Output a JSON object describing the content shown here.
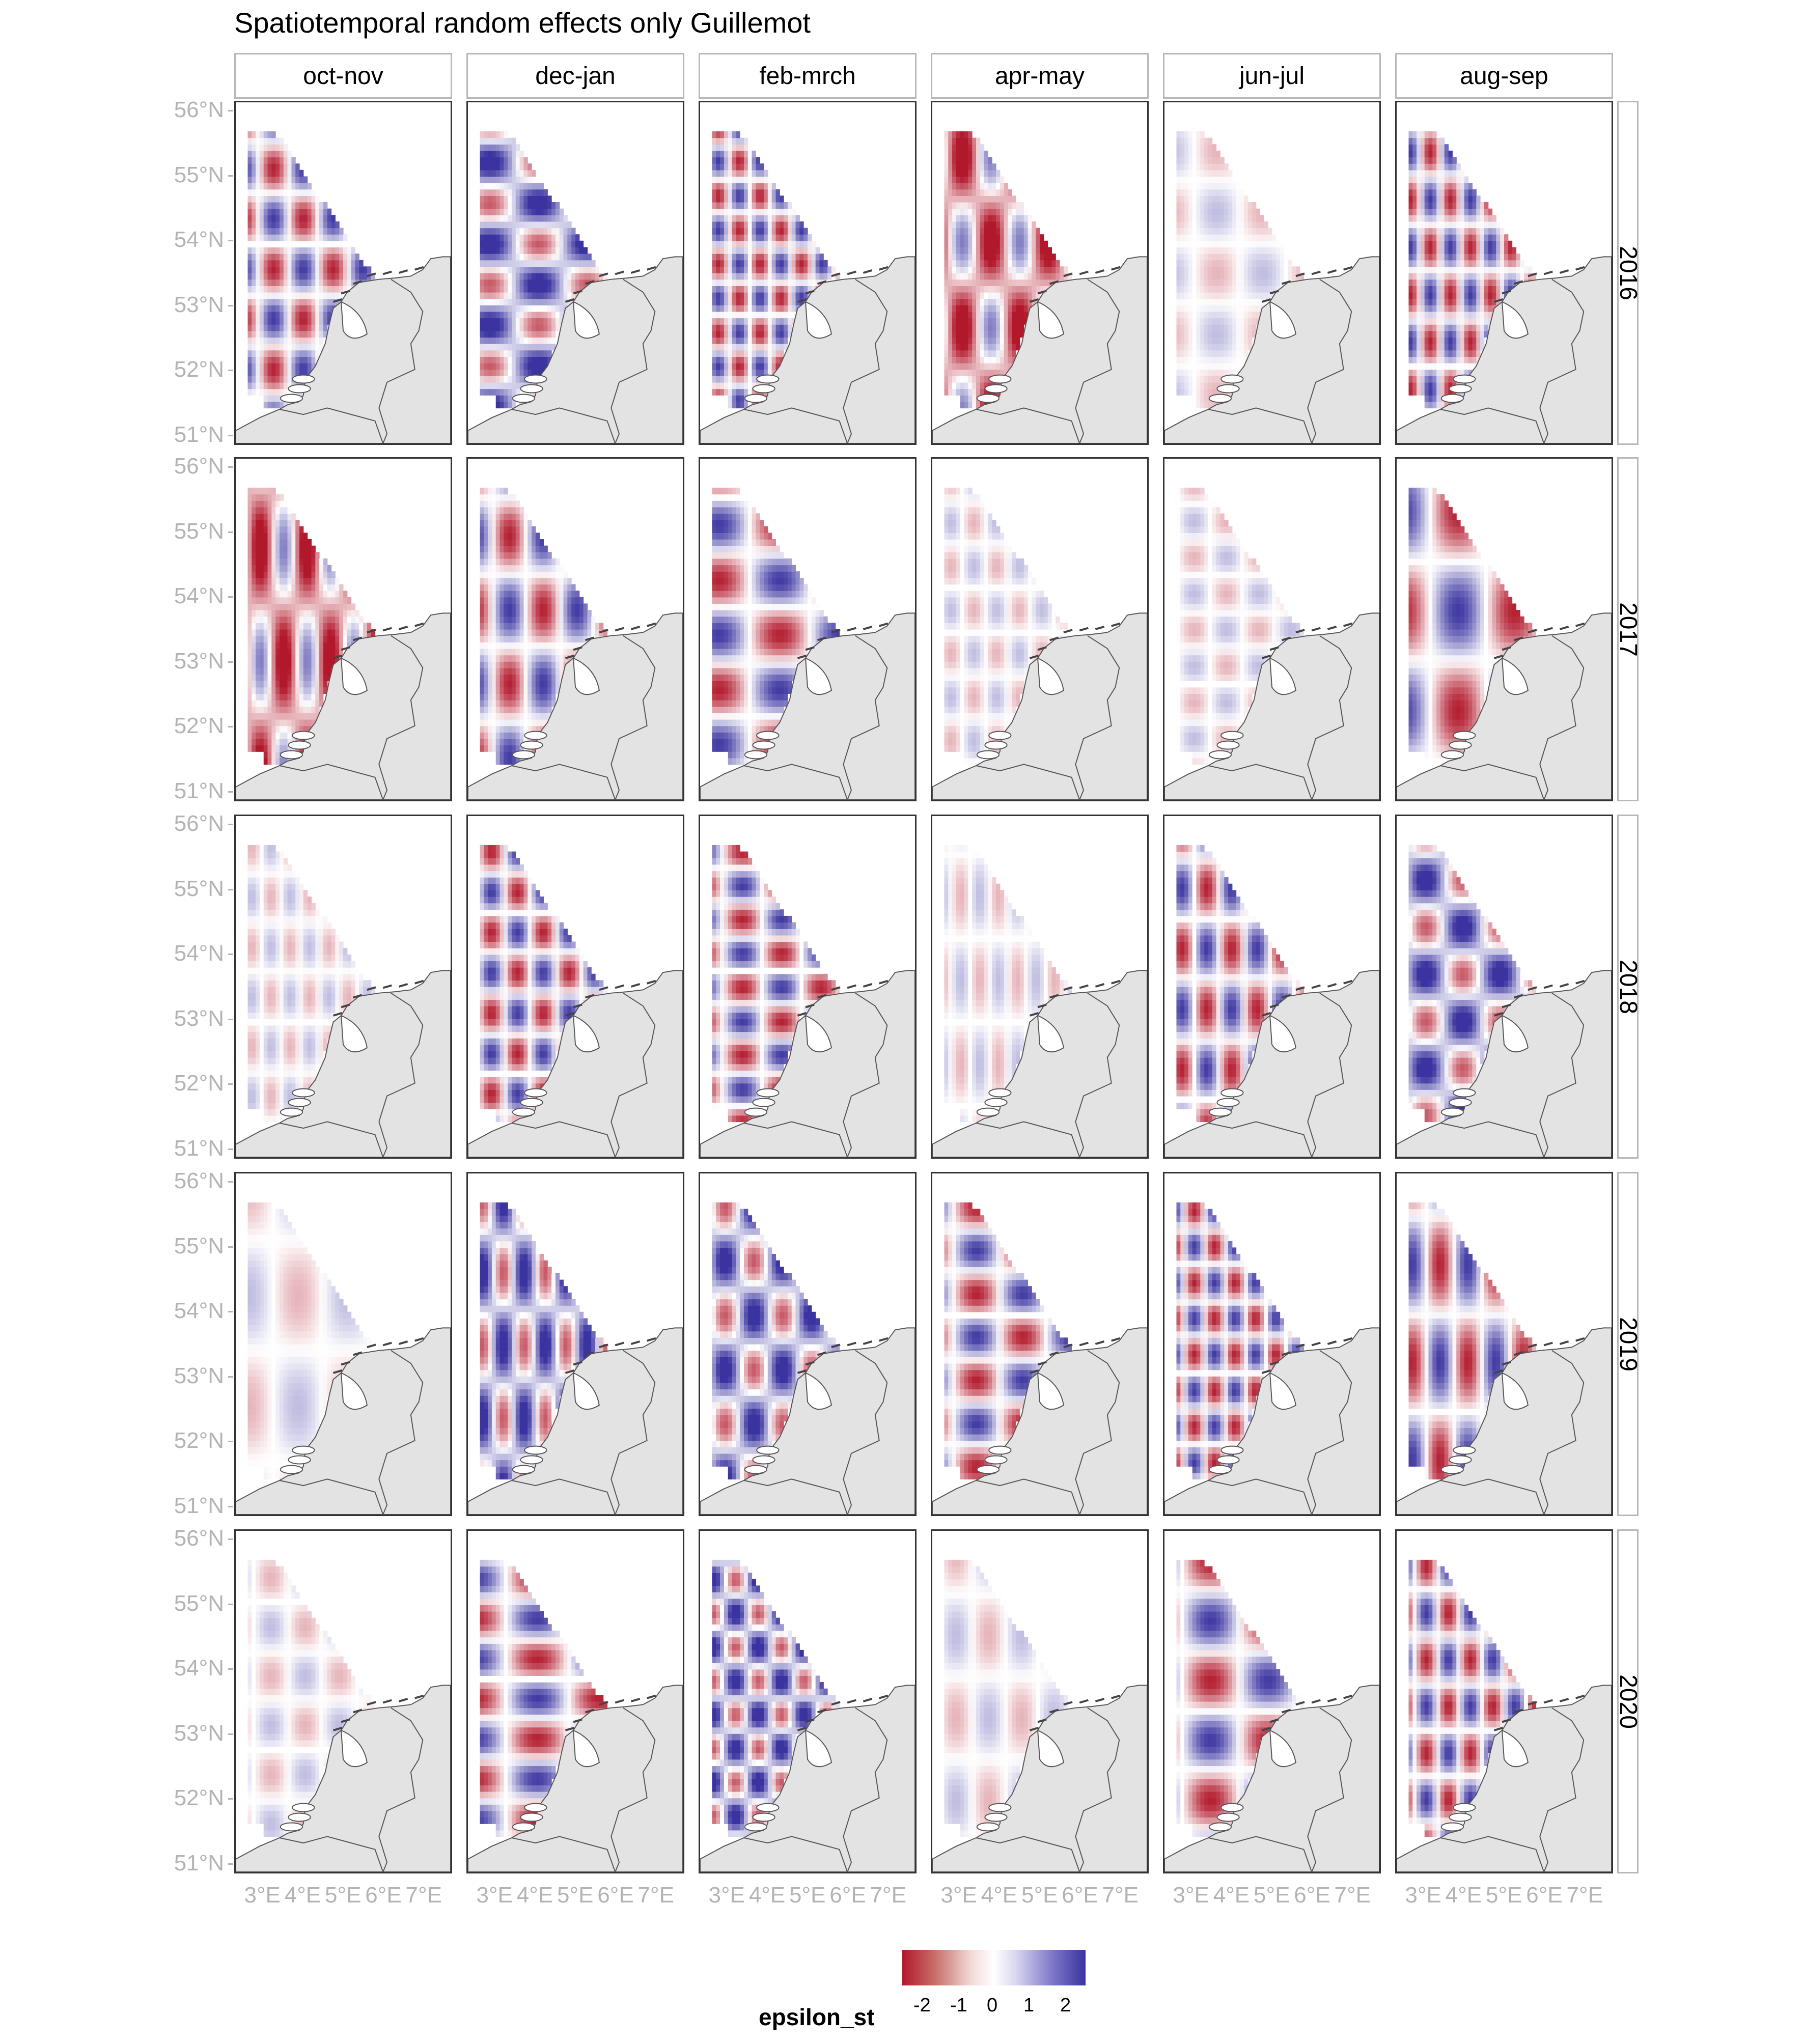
{
  "title": "Spatiotemporal random effects only Guillemot",
  "columns": [
    "oct-nov",
    "dec-jan",
    "feb-mrch",
    "apr-may",
    "jun-jul",
    "aug-sep"
  ],
  "rows": [
    "2016",
    "2017",
    "2018",
    "2019",
    "2020"
  ],
  "y_axis_labels": [
    "56°N",
    "55°N",
    "54°N",
    "53°N",
    "52°N",
    "51°N"
  ],
  "x_axis_labels": [
    "3°E",
    "4°E",
    "5°E",
    "6°E",
    "7°E"
  ],
  "legend": {
    "title": "epsilon_st",
    "ticks": [
      "-2",
      "-1",
      "0",
      "1",
      "2"
    ],
    "colors": {
      "low": "#b2182b",
      "mid": "#ffffff",
      "high": "#3a33a0"
    }
  },
  "land_color": "#e3e3e3",
  "coast_color": "#555555",
  "chart_data": {
    "type": "heatmap",
    "title": "Spatiotemporal random effects only Guillemot",
    "facets_columns": [
      "oct-nov",
      "dec-jan",
      "feb-mrch",
      "apr-may",
      "jun-jul",
      "aug-sep"
    ],
    "facets_rows": [
      "2016",
      "2017",
      "2018",
      "2019",
      "2020"
    ],
    "fill": "epsilon_st",
    "fill_range": [
      -2.5,
      2.5
    ],
    "x_range": [
      2.5,
      7.5
    ],
    "y_range": [
      51,
      56
    ],
    "dominant_pattern": [
      [
        "mixed",
        "positive",
        "mixed",
        "negative",
        "near zero",
        "mixed"
      ],
      [
        "negative",
        "mixed",
        "mixed",
        "weak",
        "near zero",
        "mixed"
      ],
      [
        "weak",
        "mixed",
        "mixed",
        "weak",
        "mixed",
        "positive"
      ],
      [
        "weak",
        "positive",
        "positive",
        "mixed",
        "mixed",
        "mixed"
      ],
      [
        "weak",
        "mixed",
        "positive",
        "weak",
        "mixed",
        "mixed"
      ]
    ]
  }
}
